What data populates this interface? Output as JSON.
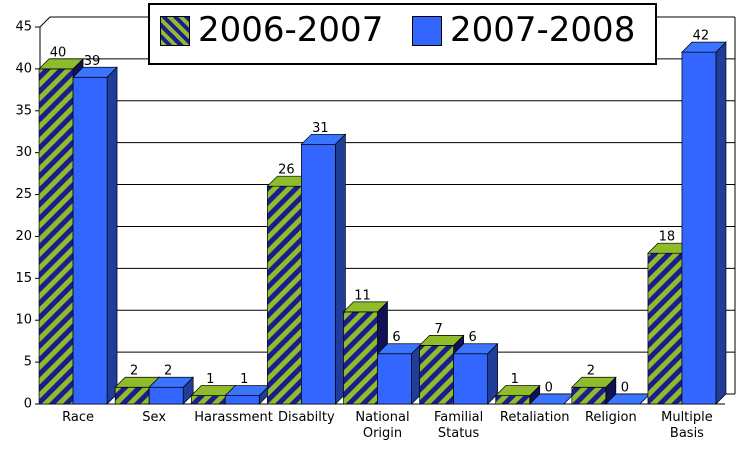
{
  "chart_data": {
    "type": "bar3d",
    "categories": [
      "Race",
      "Sex",
      "Harassment",
      "Disabilty",
      "National Origin",
      "Familial Status",
      "Retaliation",
      "Religion",
      "Multiple Basis"
    ],
    "series": [
      {
        "name": "2006-2007",
        "color": "#8fbc2a",
        "stripe_color": "#1c1c8f",
        "values": [
          40,
          2,
          1,
          26,
          11,
          7,
          1,
          2,
          18
        ]
      },
      {
        "name": "2007-2008",
        "color": "#3366ff",
        "values": [
          39,
          2,
          1,
          31,
          6,
          6,
          0,
          0,
          42
        ]
      }
    ],
    "ylim": [
      0,
      45
    ],
    "yticks": [
      0,
      5,
      10,
      15,
      20,
      25,
      30,
      35,
      40,
      45
    ],
    "grid": true,
    "legend": "top"
  }
}
